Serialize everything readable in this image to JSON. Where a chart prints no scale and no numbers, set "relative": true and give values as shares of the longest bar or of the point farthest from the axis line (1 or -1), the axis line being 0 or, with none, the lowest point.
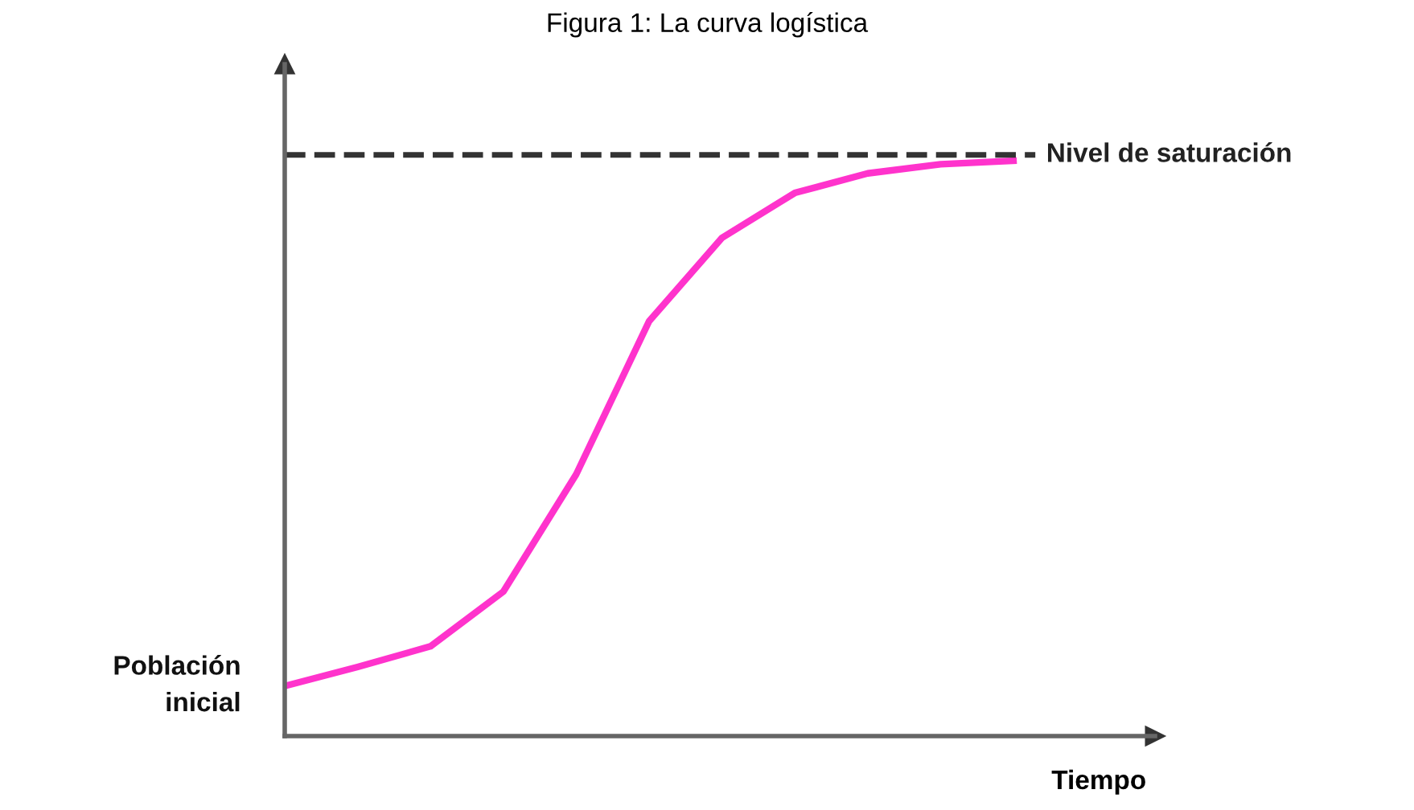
{
  "chart_data": {
    "type": "line",
    "title": "Figura 1: La curva logística",
    "xlabel": "Tiempo",
    "relative": true,
    "categories": [
      null,
      null,
      null,
      null,
      null,
      null,
      null,
      null,
      null,
      null,
      null
    ],
    "series": [
      {
        "color": "#ff33cc",
        "values": [
          0.087,
          0.12,
          0.156,
          0.251,
          0.455,
          0.721,
          0.866,
          0.944,
          0.978,
          0.994,
          1.0
        ]
      }
    ],
    "ref_lines": [
      {
        "axis": "y",
        "value": 1.01,
        "label": "Nivel de saturación",
        "color": "#333333",
        "line_style": "dashed"
      }
    ],
    "annotations": [
      "Población\ninicial"
    ],
    "marker": "none",
    "line_style": "solid"
  }
}
